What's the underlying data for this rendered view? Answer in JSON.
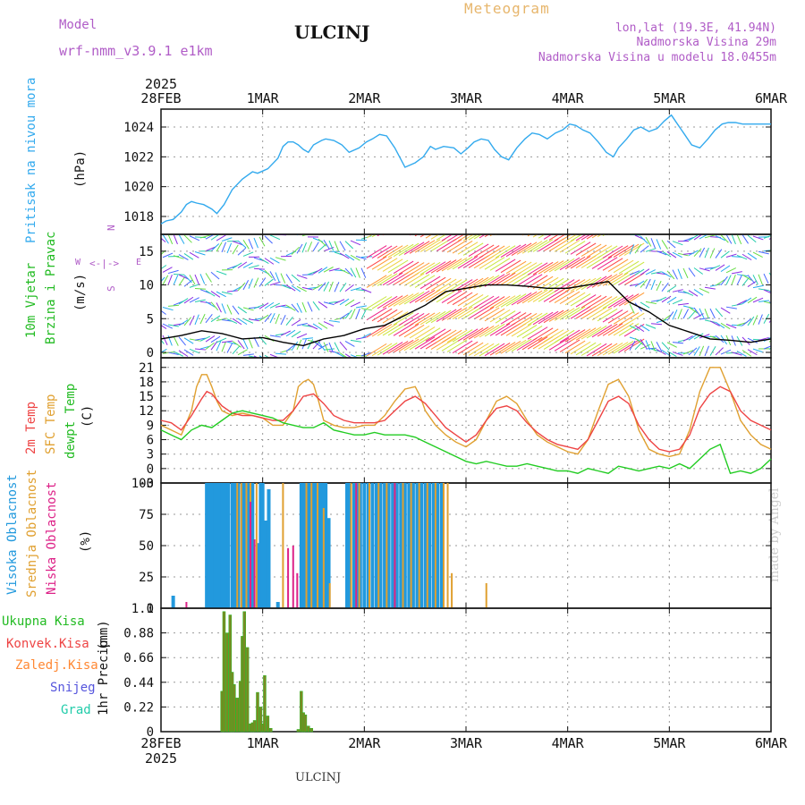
{
  "header": {
    "model_label": "Model",
    "model_name": "wrf-nmm_v3.9.1 e1km",
    "station": "ULCINJ",
    "meteogram_label": "Meteogram",
    "coords": "lon,lat (19.3E, 41.94N)",
    "elevation": "Nadmorska Visina 29m",
    "model_elevation": "Nadmorska Visina u modelu 18.0455m",
    "year": "2025"
  },
  "footer": {
    "station": "ULCINJ",
    "credit": "made by Angel"
  },
  "colors": {
    "pressure": "#33aaee",
    "t2m": "#ee4444",
    "sfc": "#e0a030",
    "dewpt": "#22cc22",
    "high_cloud": "#2299dd",
    "mid_cloud": "#e0a030",
    "low_cloud": "#dd2288",
    "total_precip": "#22bb22",
    "conv_precip": "#ee4444",
    "frz_precip": "#ff8833",
    "snow": "#5555dd",
    "hail": "#22ccaa"
  },
  "chart_data": [
    {
      "type": "line",
      "x_ticks": [
        "28FEB",
        "1MAR",
        "2MAR",
        "3MAR",
        "4MAR",
        "5MAR",
        "6MAR"
      ],
      "x_range_days": [
        0,
        6
      ],
      "ylabel_main": "Pritisak na nivou mora",
      "ylabel_unit": "(hPa)",
      "yticks": [
        "1018",
        "1020",
        "1022",
        "1024"
      ],
      "ylim": [
        1016.8,
        1025.2
      ],
      "series": [
        {
          "color": "pressure",
          "x": [
            0,
            0.05,
            0.12,
            0.2,
            0.25,
            0.3,
            0.35,
            0.42,
            0.5,
            0.55,
            0.62,
            0.7,
            0.8,
            0.9,
            0.95,
            1.05,
            1.15,
            1.2,
            1.25,
            1.3,
            1.35,
            1.4,
            1.45,
            1.5,
            1.58,
            1.62,
            1.7,
            1.78,
            1.85,
            1.95,
            2.02,
            2.08,
            2.15,
            2.22,
            2.3,
            2.4,
            2.5,
            2.58,
            2.65,
            2.7,
            2.78,
            2.88,
            2.95,
            3.02,
            3.08,
            3.15,
            3.22,
            3.28,
            3.35,
            3.42,
            3.5,
            3.58,
            3.65,
            3.72,
            3.8,
            3.88,
            3.95,
            4.02,
            4.08,
            4.15,
            4.22,
            4.3,
            4.38,
            4.45,
            4.5,
            4.58,
            4.65,
            4.72,
            4.8,
            4.88,
            4.95,
            5.02,
            5.08,
            5.15,
            5.22,
            5.3,
            5.38,
            5.45,
            5.52,
            5.58,
            5.65,
            5.72,
            5.8,
            5.88,
            5.95,
            6
          ],
          "y": [
            1017.5,
            1017.7,
            1017.8,
            1018.3,
            1018.8,
            1019.0,
            1018.9,
            1018.8,
            1018.5,
            1018.2,
            1018.8,
            1019.8,
            1020.5,
            1021.0,
            1020.9,
            1021.2,
            1021.9,
            1022.7,
            1023.0,
            1023.0,
            1022.8,
            1022.5,
            1022.3,
            1022.8,
            1023.1,
            1023.2,
            1023.1,
            1022.8,
            1022.3,
            1022.6,
            1023.0,
            1023.2,
            1023.5,
            1023.4,
            1022.6,
            1021.3,
            1021.6,
            1022.0,
            1022.7,
            1022.5,
            1022.7,
            1022.6,
            1022.2,
            1022.6,
            1023.0,
            1023.2,
            1023.1,
            1022.5,
            1022.0,
            1021.8,
            1022.6,
            1023.2,
            1023.6,
            1023.5,
            1023.2,
            1023.6,
            1023.8,
            1024.2,
            1024.1,
            1023.8,
            1023.6,
            1023.0,
            1022.3,
            1022.0,
            1022.6,
            1023.2,
            1023.8,
            1024.0,
            1023.7,
            1023.9,
            1024.4,
            1024.8,
            1024.2,
            1023.5,
            1022.8,
            1022.6,
            1023.2,
            1023.8,
            1024.2,
            1024.3,
            1024.3,
            1024.2,
            1024.2,
            1024.2,
            1024.2,
            1024.2
          ]
        }
      ]
    },
    {
      "type": "line",
      "ylabel_main": "10m Vjetar",
      "ylabel_sub": "Brzina i Pravac",
      "ylabel_unit": "(m/s)",
      "compass_n": "N",
      "compass_w": "W",
      "compass_e": "E",
      "compass_s": "S",
      "yticks": [
        "0",
        "5",
        "10",
        "15"
      ],
      "ylim": [
        -0.8,
        17.5
      ],
      "series": [
        {
          "color": "#000000",
          "x": [
            0,
            0.2,
            0.4,
            0.6,
            0.8,
            1.0,
            1.2,
            1.4,
            1.6,
            1.8,
            2.0,
            2.2,
            2.4,
            2.6,
            2.8,
            3.0,
            3.2,
            3.4,
            3.6,
            3.8,
            4.0,
            4.2,
            4.4,
            4.5,
            4.6,
            4.8,
            5.0,
            5.2,
            5.4,
            5.6,
            5.8,
            6.0
          ],
          "y": [
            2.0,
            2.5,
            3.2,
            2.8,
            2.0,
            2.2,
            1.5,
            1.0,
            2.0,
            2.5,
            3.5,
            4.0,
            5.5,
            7.0,
            9.0,
            9.5,
            10.0,
            10.0,
            9.8,
            9.5,
            9.5,
            10.0,
            10.5,
            9.0,
            7.5,
            6.0,
            4.0,
            3.0,
            2.0,
            1.8,
            1.5,
            2.0
          ]
        }
      ]
    },
    {
      "type": "line",
      "ylabel_t2m": "2m Temp",
      "ylabel_sfc": "SFC Temp",
      "ylabel_dew": "dewpt Temp",
      "ylabel_unit": "(C)",
      "yticks": [
        "-3",
        "0",
        "3",
        "6",
        "9",
        "12",
        "15",
        "18",
        "21"
      ],
      "ylim": [
        -3,
        23
      ],
      "series": [
        {
          "name": "SFC Temp",
          "color": "sfc",
          "x": [
            0,
            0.1,
            0.2,
            0.3,
            0.35,
            0.4,
            0.45,
            0.5,
            0.55,
            0.6,
            0.7,
            0.8,
            0.9,
            1.0,
            1.1,
            1.2,
            1.3,
            1.35,
            1.4,
            1.45,
            1.5,
            1.55,
            1.6,
            1.7,
            1.8,
            1.9,
            2.0,
            2.1,
            2.2,
            2.3,
            2.4,
            2.5,
            2.55,
            2.6,
            2.7,
            2.8,
            2.9,
            3.0,
            3.1,
            3.2,
            3.3,
            3.4,
            3.5,
            3.6,
            3.7,
            3.8,
            3.9,
            4.0,
            4.1,
            4.2,
            4.3,
            4.4,
            4.5,
            4.6,
            4.7,
            4.8,
            4.9,
            5.0,
            5.1,
            5.2,
            5.3,
            5.4,
            5.5,
            5.6,
            5.7,
            5.8,
            5.9,
            6.0
          ],
          "y": [
            9,
            8,
            7,
            12,
            17,
            19.5,
            19.5,
            17,
            14,
            12,
            11,
            11.5,
            11,
            10.5,
            9,
            9,
            12,
            17,
            18,
            18.5,
            17.5,
            14,
            10,
            9,
            8.5,
            8.5,
            9,
            9,
            11,
            14,
            16.5,
            17,
            15,
            12,
            9,
            7,
            5.5,
            4.5,
            6,
            10,
            14,
            15,
            13.5,
            10,
            7,
            5.5,
            4.5,
            3.5,
            3,
            6,
            12,
            17.5,
            18.5,
            15,
            8,
            4,
            3,
            2.5,
            3,
            8,
            16,
            21,
            21,
            16,
            10,
            7,
            5,
            4
          ]
        },
        {
          "name": "2m Temp",
          "color": "t2m",
          "x": [
            0,
            0.1,
            0.2,
            0.3,
            0.4,
            0.45,
            0.5,
            0.6,
            0.7,
            0.8,
            0.9,
            1.0,
            1.1,
            1.2,
            1.3,
            1.4,
            1.5,
            1.6,
            1.7,
            1.8,
            1.9,
            2.0,
            2.1,
            2.2,
            2.3,
            2.4,
            2.5,
            2.6,
            2.7,
            2.8,
            2.9,
            3.0,
            3.1,
            3.2,
            3.3,
            3.4,
            3.5,
            3.6,
            3.7,
            3.8,
            3.9,
            4.0,
            4.1,
            4.2,
            4.3,
            4.4,
            4.5,
            4.6,
            4.7,
            4.8,
            4.9,
            5.0,
            5.1,
            5.2,
            5.3,
            5.4,
            5.5,
            5.6,
            5.7,
            5.8,
            5.9,
            6.0
          ],
          "y": [
            10,
            9.5,
            8,
            11,
            14.5,
            16,
            15.5,
            13,
            11.5,
            11,
            11,
            10.5,
            10,
            10,
            12,
            15,
            15.5,
            13.5,
            11,
            10,
            9.5,
            9.5,
            9.5,
            10,
            12,
            14,
            15,
            13.5,
            11,
            8.5,
            7,
            5.5,
            7,
            10,
            12.5,
            13,
            12,
            9.5,
            7.5,
            6,
            5,
            4.5,
            4,
            6,
            10,
            14,
            15,
            13.5,
            9,
            6,
            4,
            3.5,
            4,
            7,
            12.5,
            15.5,
            17,
            16,
            12,
            10,
            9,
            8
          ]
        },
        {
          "name": "dewpt Temp",
          "color": "dewpt",
          "x": [
            0,
            0.1,
            0.2,
            0.3,
            0.4,
            0.5,
            0.6,
            0.7,
            0.8,
            0.9,
            1.0,
            1.1,
            1.2,
            1.3,
            1.4,
            1.5,
            1.6,
            1.7,
            1.8,
            1.9,
            2.0,
            2.1,
            2.2,
            2.3,
            2.4,
            2.5,
            2.6,
            2.7,
            2.8,
            2.9,
            3.0,
            3.1,
            3.2,
            3.3,
            3.4,
            3.5,
            3.6,
            3.7,
            3.8,
            3.9,
            4.0,
            4.1,
            4.2,
            4.3,
            4.4,
            4.5,
            4.6,
            4.7,
            4.8,
            4.9,
            5.0,
            5.1,
            5.2,
            5.3,
            5.4,
            5.5,
            5.6,
            5.7,
            5.8,
            5.9,
            6.0
          ],
          "y": [
            8,
            7,
            6,
            8,
            9,
            8.5,
            10,
            11.5,
            12,
            11.5,
            11,
            10.5,
            9.5,
            9,
            8.5,
            8.5,
            9.5,
            8,
            7.5,
            7,
            7,
            7.5,
            7,
            7,
            7,
            6.5,
            5.5,
            4.5,
            3.5,
            2.5,
            1.5,
            1,
            1.5,
            1,
            0.5,
            0.5,
            1,
            0.5,
            0,
            -0.5,
            -0.5,
            -1,
            0,
            -0.5,
            -1,
            0.5,
            0,
            -0.5,
            0,
            0.5,
            0,
            1,
            0,
            2,
            4,
            5,
            -1,
            -0.5,
            -1,
            0,
            2
          ]
        }
      ]
    },
    {
      "type": "bar",
      "ylabel_high": "Visoka Oblacnost",
      "ylabel_mid": "Srednja Oblacnost",
      "ylabel_low": "Niska Oblacnost",
      "ylabel_unit": "(%)",
      "yticks": [
        "0",
        "25",
        "50",
        "75",
        "100"
      ],
      "ylim": [
        0,
        100
      ],
      "series": [
        {
          "name": "Visoka Oblacnost",
          "color": "high_cloud",
          "x": [
            0.12,
            0.45,
            0.47,
            0.49,
            0.51,
            0.53,
            0.55,
            0.57,
            0.6,
            0.63,
            0.66,
            0.7,
            0.73,
            0.76,
            0.8,
            0.83,
            0.86,
            0.9,
            0.96,
            0.98,
            1.0,
            1.03,
            1.06,
            1.15,
            1.38,
            1.41,
            1.44,
            1.47,
            1.5,
            1.53,
            1.56,
            1.59,
            1.62,
            1.65,
            1.83,
            1.86,
            1.9,
            1.93,
            1.96,
            2.0,
            2.04,
            2.08,
            2.12,
            2.16,
            2.2,
            2.24,
            2.28,
            2.32,
            2.36,
            2.4,
            2.44,
            2.48,
            2.52,
            2.56,
            2.6,
            2.64,
            2.68,
            2.72,
            2.76
          ],
          "values": [
            10,
            100,
            100,
            100,
            100,
            100,
            100,
            100,
            100,
            100,
            100,
            100,
            100,
            100,
            100,
            100,
            100,
            100,
            52,
            100,
            100,
            70,
            95,
            5,
            100,
            100,
            100,
            100,
            100,
            100,
            100,
            100,
            100,
            72,
            100,
            100,
            100,
            100,
            100,
            100,
            100,
            100,
            100,
            100,
            100,
            100,
            100,
            100,
            100,
            100,
            100,
            100,
            100,
            100,
            100,
            100,
            100,
            100,
            100
          ]
        },
        {
          "name": "Srednja Oblacnost",
          "color": "mid_cloud",
          "x": [
            0.75,
            0.79,
            0.84,
            0.88,
            0.94,
            1.2,
            1.43,
            1.48,
            1.54,
            1.6,
            1.66,
            1.87,
            1.95,
            2.05,
            2.14,
            2.22,
            2.3,
            2.38,
            2.46,
            2.54,
            2.62,
            2.7,
            2.78,
            2.82,
            2.86,
            3.2
          ],
          "values": [
            100,
            100,
            100,
            100,
            100,
            100,
            100,
            100,
            100,
            80,
            20,
            100,
            100,
            100,
            100,
            100,
            100,
            100,
            100,
            100,
            100,
            100,
            100,
            100,
            28,
            20
          ]
        },
        {
          "name": "Niska Oblacnost",
          "color": "low_cloud",
          "x": [
            0.25,
            0.88,
            0.92,
            1.25,
            1.3,
            1.34,
            1.92,
            2.3
          ],
          "values": [
            5,
            85,
            55,
            48,
            50,
            28,
            100,
            100
          ]
        }
      ]
    },
    {
      "type": "bar",
      "ylabel_main": "1hr Precip",
      "ylabel_unit": "(mm)",
      "legend": [
        "Ukupna Kisa",
        "Konvek.Kisa",
        "Zaledj.Kisa",
        "Snijeg",
        "Grad"
      ],
      "yticks": [
        "0",
        "0.22",
        "0.44",
        "0.66",
        "0.88",
        "1.1"
      ],
      "ylim": [
        0,
        1.1
      ],
      "series": [
        {
          "name": "Ukupna Kisa",
          "color": "total_precip",
          "x": [
            0.6,
            0.62,
            0.65,
            0.68,
            0.7,
            0.72,
            0.75,
            0.78,
            0.8,
            0.82,
            0.85,
            0.88,
            0.9,
            0.92,
            0.95,
            0.98,
            1.0,
            1.02,
            1.05,
            1.08,
            1.1,
            1.35,
            1.38,
            1.4,
            1.42,
            1.45,
            1.48
          ],
          "values": [
            0.36,
            1.07,
            0.88,
            1.04,
            0.53,
            0.42,
            0.3,
            0.45,
            0.85,
            1.07,
            0.75,
            0.07,
            0.08,
            0.1,
            0.35,
            0.22,
            0.07,
            0.5,
            0.14,
            0.03,
            0.0,
            0.02,
            0.36,
            0.17,
            0.15,
            0.05,
            0.03
          ]
        }
      ]
    }
  ]
}
